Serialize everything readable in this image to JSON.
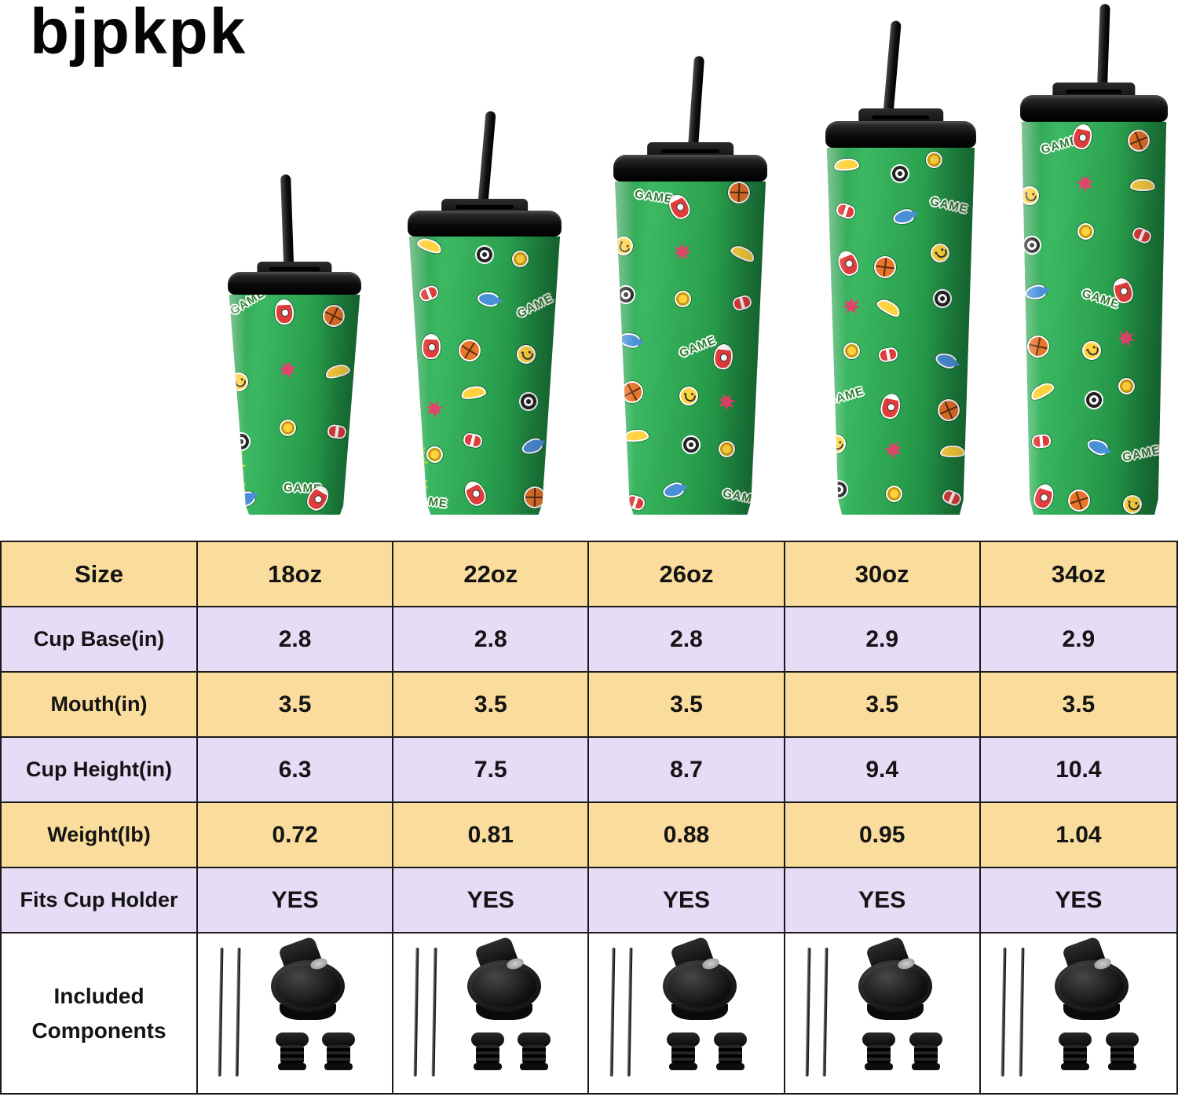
{
  "brand": "bjpkpk",
  "colors": {
    "cup_green": "#2aa14e",
    "cup_green_light": "#3cb863",
    "cup_green_dark": "#1b7f3c",
    "lid_black": "#141414",
    "row_tan": "#fadc9c",
    "row_lavender": "#e6dcf6",
    "table_border": "#1a1a1a",
    "text": "#141414"
  },
  "hero": {
    "sizes": [
      "18oz",
      "22oz",
      "26oz",
      "30oz",
      "34oz"
    ],
    "sticker_badge_text": "GAME",
    "sticker_icons": [
      "game-badge",
      "rocket",
      "basketball",
      "smiley",
      "flower",
      "banana",
      "lens",
      "coin",
      "candy",
      "fish"
    ]
  },
  "table": {
    "header_label": "Size",
    "columns": [
      "18oz",
      "22oz",
      "26oz",
      "30oz",
      "34oz"
    ],
    "rows": [
      {
        "label": "Cup Base(in)",
        "values": [
          "2.8",
          "2.8",
          "2.8",
          "2.9",
          "2.9"
        ]
      },
      {
        "label": "Mouth(in)",
        "values": [
          "3.5",
          "3.5",
          "3.5",
          "3.5",
          "3.5"
        ]
      },
      {
        "label": "Cup Height(in)",
        "values": [
          "6.3",
          "7.5",
          "8.7",
          "9.4",
          "10.4"
        ]
      },
      {
        "label": "Weight(lb)",
        "values": [
          "0.72",
          "0.81",
          "0.88",
          "0.95",
          "1.04"
        ]
      },
      {
        "label": "Fits Cup Holder",
        "values": [
          "YES",
          "YES",
          "YES",
          "YES",
          "YES"
        ]
      }
    ],
    "components_row": {
      "label_line1": "Included",
      "label_line2": "Components",
      "items": [
        "metal-straw",
        "metal-straw",
        "flip-lid",
        "straw-stopper",
        "straw-stopper"
      ],
      "straw_count": 2,
      "lid_count": 1,
      "stopper_count": 2
    }
  }
}
